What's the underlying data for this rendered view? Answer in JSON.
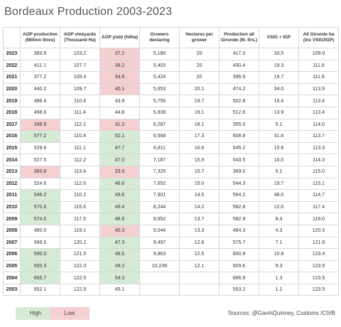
{
  "title": "Bordeaux Production 2003-2023",
  "headers": [
    "",
    "AOP production (Million litres)",
    "AOP vineyards (Thousand Ha)",
    "AOP yield (hl/ha)",
    "Growers declaring",
    "Hectares per grower",
    "Production all Gironde (M. ltrs.)",
    "VSIG + IGP",
    "All Gironde ha (inc VSIG/IGP)"
  ],
  "colors": {
    "high": "#d5ebd5",
    "low": "#f4d0d2"
  },
  "rows": [
    {
      "year": "2023",
      "prod": "383.9",
      "vine": "103.2",
      "yield": "37.2",
      "growers": "5,180",
      "hpg": "20",
      "all": "417.3",
      "vsig": "33.5",
      "ha": "109.0",
      "hl": {
        "yield": "lo"
      }
    },
    {
      "year": "2022",
      "prod": "411.1",
      "vine": "107.7",
      "yield": "38.2",
      "growers": "5,403",
      "hpg": "20",
      "all": "430.4",
      "vsig": "19.3",
      "ha": "111.6",
      "hl": {
        "yield": "lo"
      }
    },
    {
      "year": "2021",
      "prod": "377.2",
      "vine": "108.4",
      "yield": "34.8",
      "growers": "5,424",
      "hpg": "20",
      "all": "396.9",
      "vsig": "19.7",
      "ha": "111.8",
      "hl": {
        "yield": "lo"
      }
    },
    {
      "year": "2020",
      "prod": "440.2",
      "vine": "109.7",
      "yield": "40.1",
      "growers": "5,653",
      "hpg": "20.1",
      "all": "474.2",
      "vsig": "34.0",
      "ha": "113.9",
      "hl": {
        "yield": "lo"
      }
    },
    {
      "year": "2019",
      "prod": "486.4",
      "vine": "110.8",
      "yield": "43.9",
      "growers": "5,755",
      "hpg": "19.7",
      "all": "502.8",
      "vsig": "16.4",
      "ha": "113.4",
      "hl": {}
    },
    {
      "year": "2018",
      "prod": "498.6",
      "vine": "111.4",
      "yield": "44.8",
      "growers": "5,939",
      "hpg": "19.1",
      "all": "512.6",
      "vsig": "13.9",
      "ha": "113.4",
      "hl": {}
    },
    {
      "year": "2017",
      "prod": "349.9",
      "vine": "112.2",
      "yield": "31.2",
      "growers": "6,287",
      "hpg": "18.1",
      "all": "355.0",
      "vsig": "5.1",
      "ha": "114.0",
      "hl": {
        "prod": "lo",
        "yield": "lo"
      }
    },
    {
      "year": "2016",
      "prod": "577.2",
      "vine": "110.8",
      "yield": "52.1",
      "growers": "6,568",
      "hpg": "17.3",
      "all": "608.8",
      "vsig": "31.6",
      "ha": "113.7",
      "hl": {
        "prod": "hi",
        "yield": "hi"
      }
    },
    {
      "year": "2015",
      "prod": "529.6",
      "vine": "111.1",
      "yield": "47.7",
      "growers": "6,811",
      "hpg": "16.6",
      "all": "545.2",
      "vsig": "15.6",
      "ha": "113.3",
      "hl": {
        "yield": "hi"
      }
    },
    {
      "year": "2014",
      "prod": "527.5",
      "vine": "112.2",
      "yield": "47.0",
      "growers": "7,187",
      "hpg": "15.9",
      "all": "543.5",
      "vsig": "16.0",
      "ha": "114.3",
      "hl": {
        "yield": "hi"
      }
    },
    {
      "year": "2013",
      "prod": "383.8",
      "vine": "113.4",
      "yield": "33.9",
      "growers": "7,325",
      "hpg": "15.7",
      "all": "389.0",
      "vsig": "5.1",
      "ha": "115.0",
      "hl": {
        "prod": "lo",
        "yield": "lo"
      }
    },
    {
      "year": "2012",
      "prod": "524.6",
      "vine": "112.6",
      "yield": "46.6",
      "growers": "7,652",
      "hpg": "15.0",
      "all": "544.3",
      "vsig": "19.7",
      "ha": "115.1",
      "hl": {
        "yield": "hi"
      }
    },
    {
      "year": "2011",
      "prod": "546.2",
      "vine": "110.2",
      "yield": "49.6",
      "growers": "7,901",
      "hpg": "14.5",
      "all": "594.2",
      "vsig": "48.0",
      "ha": "114.7",
      "hl": {
        "prod": "hi",
        "yield": "hi"
      }
    },
    {
      "year": "2010",
      "prod": "570.8",
      "vine": "115.6",
      "yield": "49.4",
      "growers": "8,244",
      "hpg": "14.2",
      "all": "582.8",
      "vsig": "12.0",
      "ha": "117.4",
      "hl": {
        "prod": "hi",
        "yield": "hi"
      }
    },
    {
      "year": "2009",
      "prod": "574.5",
      "vine": "117.5",
      "yield": "48.9",
      "growers": "8,652",
      "hpg": "13.7",
      "all": "582.9",
      "vsig": "8.4",
      "ha": "119.0",
      "hl": {
        "prod": "hi",
        "yield": "hi"
      }
    },
    {
      "year": "2008",
      "prod": "480.0",
      "vine": "119.1",
      "yield": "40.3",
      "growers": "9,044",
      "hpg": "13.3",
      "all": "484.3",
      "vsig": "4.3",
      "ha": "120.5",
      "hl": {
        "yield": "lo"
      }
    },
    {
      "year": "2007",
      "prod": "568.5",
      "vine": "120.2",
      "yield": "47.3",
      "growers": "9,497",
      "hpg": "12.8",
      "all": "575.7",
      "vsig": "7.1",
      "ha": "121.8",
      "hl": {
        "yield": "hi"
      }
    },
    {
      "year": "2006",
      "prod": "590.0",
      "vine": "121.5",
      "yield": "48.6",
      "growers": "9,863",
      "hpg": "12.5",
      "all": "600.8",
      "vsig": "10.8",
      "ha": "123.4",
      "hl": {
        "prod": "hi",
        "yield": "hi"
      }
    },
    {
      "year": "2005",
      "prod": "600.3",
      "vine": "122.0",
      "yield": "49.2",
      "growers": "10,239",
      "hpg": "12.1",
      "all": "609.6",
      "vsig": "9.3",
      "ha": "123.5",
      "hl": {
        "prod": "hi",
        "yield": "hi"
      }
    },
    {
      "year": "2004",
      "prod": "665.7",
      "vine": "122.5",
      "yield": "54.3",
      "growers": "",
      "hpg": "",
      "all": "666.9",
      "vsig": "1.3",
      "ha": "123.5",
      "hl": {
        "prod": "hi",
        "yield": "hi"
      }
    },
    {
      "year": "2003",
      "prod": "552.1",
      "vine": "122.5",
      "yield": "45.1",
      "growers": "",
      "hpg": "",
      "all": "553.2",
      "vsig": "1.1",
      "ha": "123.5",
      "hl": {}
    }
  ],
  "legend": {
    "high": "High",
    "low": "Low"
  },
  "source": "Sources: @GavinQuinney, Customs /CIVB"
}
